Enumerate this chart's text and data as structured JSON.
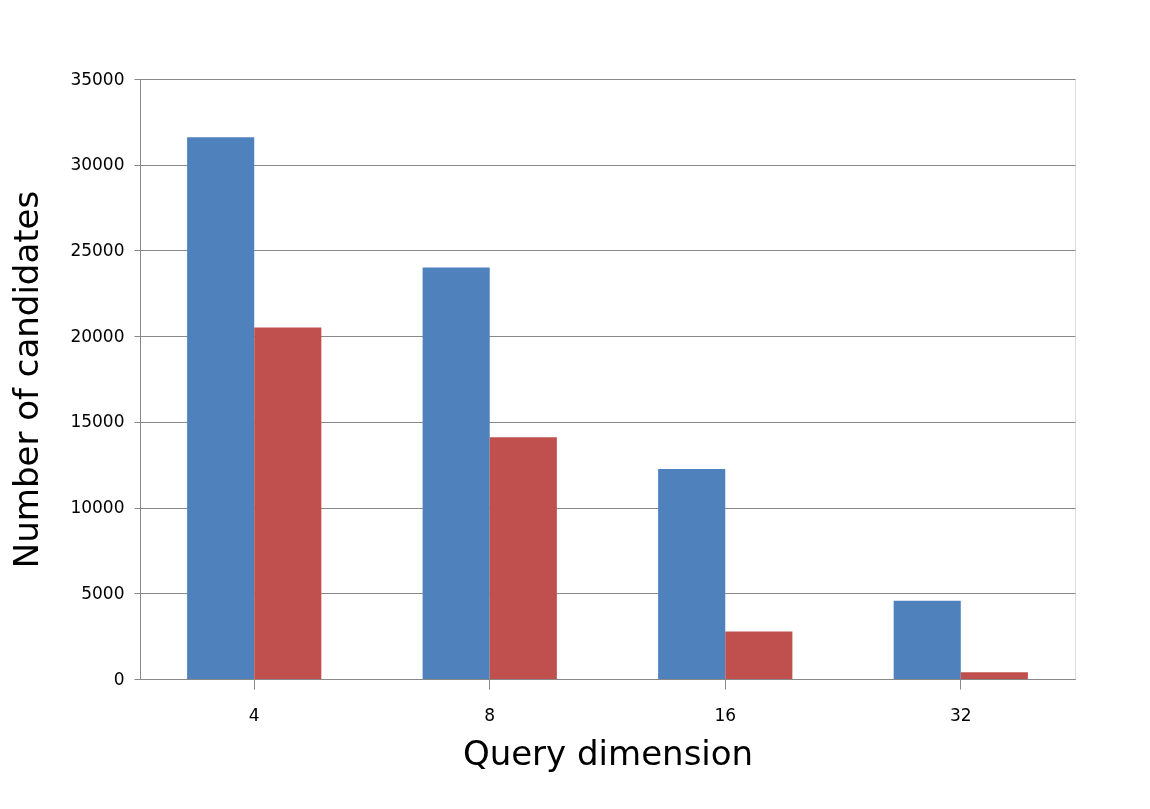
{
  "chart_data": {
    "type": "bar",
    "xlabel": "Query dimension",
    "ylabel": "Number of candidates",
    "categories": [
      "4",
      "8",
      "16",
      "32"
    ],
    "series": [
      {
        "color": "#4f81bd",
        "values": [
          31600,
          24000,
          12250,
          4570
        ]
      },
      {
        "color": "#c0504d",
        "values": [
          20500,
          14100,
          2770,
          400
        ]
      }
    ],
    "ylim": [
      0,
      35000
    ],
    "yticks": [
      0,
      5000,
      10000,
      15000,
      20000,
      25000,
      30000,
      35000
    ],
    "grid": "y"
  }
}
